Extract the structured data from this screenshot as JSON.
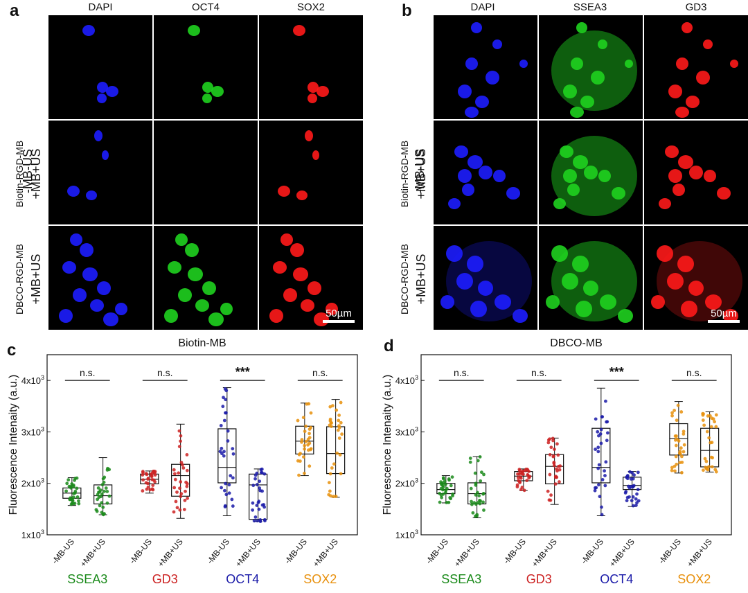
{
  "panel_labels": [
    "a",
    "b",
    "c",
    "d"
  ],
  "panel_a": {
    "channels": [
      "DAPI",
      "OCT4",
      "SOX2"
    ],
    "rows": [
      {
        "lines": [
          "-MB-US"
        ]
      },
      {
        "lines": [
          "Biotin-RGD-MB",
          "+MB+US"
        ]
      },
      {
        "lines": [
          "DBCO-RGD-MB",
          "+MB+US"
        ]
      }
    ],
    "scalebar": "50µm"
  },
  "panel_b": {
    "channels": [
      "DAPI",
      "SSEA3",
      "GD3"
    ],
    "rows": [
      {
        "lines": [
          "-MB-US"
        ]
      },
      {
        "lines": [
          "Biotin-RGD-MB",
          "+MB+US"
        ]
      },
      {
        "lines": [
          "DBCO-RGD-MB",
          "+MB+US"
        ]
      }
    ],
    "scalebar": "50µm"
  },
  "colors": {
    "dapi": "#1d1dff",
    "green": "#1fd11f",
    "red": "#ff1a1a",
    "ssea3": "#1a8a1a",
    "gd3": "#cc2222",
    "oct4": "#1a1aa8",
    "sox2": "#e8900c"
  },
  "chart_data": [
    {
      "panel": "c",
      "type": "box",
      "title": "Biotin-MB",
      "ylabel": "Fluorescence Intenaity (a.u.)",
      "ylim": [
        1000,
        4500
      ],
      "yticks": [
        {
          "v": 1000,
          "base": "1x10",
          "exp": "3"
        },
        {
          "v": 2000,
          "base": "2x10",
          "exp": "3"
        },
        {
          "v": 3000,
          "base": "3x10",
          "exp": "3"
        },
        {
          "v": 4000,
          "base": "4x10",
          "exp": "3"
        }
      ],
      "groups": [
        {
          "name": "SSEA3",
          "color": "#1a8a1a",
          "sig": "n.s.",
          "boxes": [
            {
              "label": "-MB-US",
              "min": 1570,
              "q1": 1710,
              "median": 1810,
              "q3": 1910,
              "max": 2110
            },
            {
              "label": "+MB+US",
              "min": 1390,
              "q1": 1600,
              "median": 1760,
              "q3": 1970,
              "max": 2500
            }
          ]
        },
        {
          "name": "GD3",
          "color": "#cc2222",
          "sig": "n.s.",
          "boxes": [
            {
              "label": "-MB-US",
              "min": 1810,
              "q1": 1990,
              "median": 2080,
              "q3": 2180,
              "max": 2240
            },
            {
              "label": "+MB+US",
              "min": 1320,
              "q1": 1750,
              "median": 2150,
              "q3": 2370,
              "max": 3150
            }
          ]
        },
        {
          "name": "OCT4",
          "color": "#1a1aa8",
          "sig": "***",
          "boxes": [
            {
              "label": "-MB-US",
              "min": 1370,
              "q1": 2010,
              "median": 2310,
              "q3": 3060,
              "max": 3860
            },
            {
              "label": "+MB+US",
              "min": 1260,
              "q1": 1300,
              "median": 1970,
              "q3": 2180,
              "max": 2280
            }
          ]
        },
        {
          "name": "SOX2",
          "color": "#e8900c",
          "sig": "n.s.",
          "boxes": [
            {
              "label": "-MB-US",
              "min": 2150,
              "q1": 2570,
              "median": 2820,
              "q3": 3110,
              "max": 3560
            },
            {
              "label": "+MB+US",
              "min": 1730,
              "q1": 2190,
              "median": 2580,
              "q3": 3100,
              "max": 3630
            }
          ]
        }
      ]
    },
    {
      "panel": "d",
      "type": "box",
      "title": "DBCO-MB",
      "ylabel": "Fluorescence Intenaity (a.u.)",
      "ylim": [
        1000,
        4500
      ],
      "yticks": [
        {
          "v": 1000,
          "base": "1x10",
          "exp": "3"
        },
        {
          "v": 2000,
          "base": "2x10",
          "exp": "3"
        },
        {
          "v": 3000,
          "base": "3x10",
          "exp": "3"
        },
        {
          "v": 4000,
          "base": "4x10",
          "exp": "3"
        }
      ],
      "groups": [
        {
          "name": "SSEA3",
          "color": "#1a8a1a",
          "sig": "n.s.",
          "boxes": [
            {
              "label": "-MB-US",
              "min": 1620,
              "q1": 1800,
              "median": 1880,
              "q3": 2000,
              "max": 2150
            },
            {
              "label": "+MB+US",
              "min": 1330,
              "q1": 1600,
              "median": 1800,
              "q3": 2010,
              "max": 2520
            }
          ]
        },
        {
          "name": "GD3",
          "color": "#cc2222",
          "sig": "n.s.",
          "boxes": [
            {
              "label": "-MB-US",
              "min": 1860,
              "q1": 2050,
              "median": 2140,
              "q3": 2230,
              "max": 2280
            },
            {
              "label": "+MB+US",
              "min": 1590,
              "q1": 1990,
              "median": 2330,
              "q3": 2560,
              "max": 2880
            }
          ]
        },
        {
          "name": "OCT4",
          "color": "#1a1aa8",
          "sig": "***",
          "boxes": [
            {
              "label": "-MB-US",
              "min": 1370,
              "q1": 2010,
              "median": 2310,
              "q3": 3070,
              "max": 3850
            },
            {
              "label": "+MB+US",
              "min": 1550,
              "q1": 1880,
              "median": 1960,
              "q3": 2120,
              "max": 2230
            }
          ]
        },
        {
          "name": "SOX2",
          "color": "#e8900c",
          "sig": "n.s.",
          "boxes": [
            {
              "label": "-MB-US",
              "min": 2200,
              "q1": 2550,
              "median": 2870,
              "q3": 3160,
              "max": 3590
            },
            {
              "label": "+MB+US",
              "min": 2220,
              "q1": 2320,
              "median": 2640,
              "q3": 3070,
              "max": 3390
            }
          ]
        }
      ]
    }
  ]
}
